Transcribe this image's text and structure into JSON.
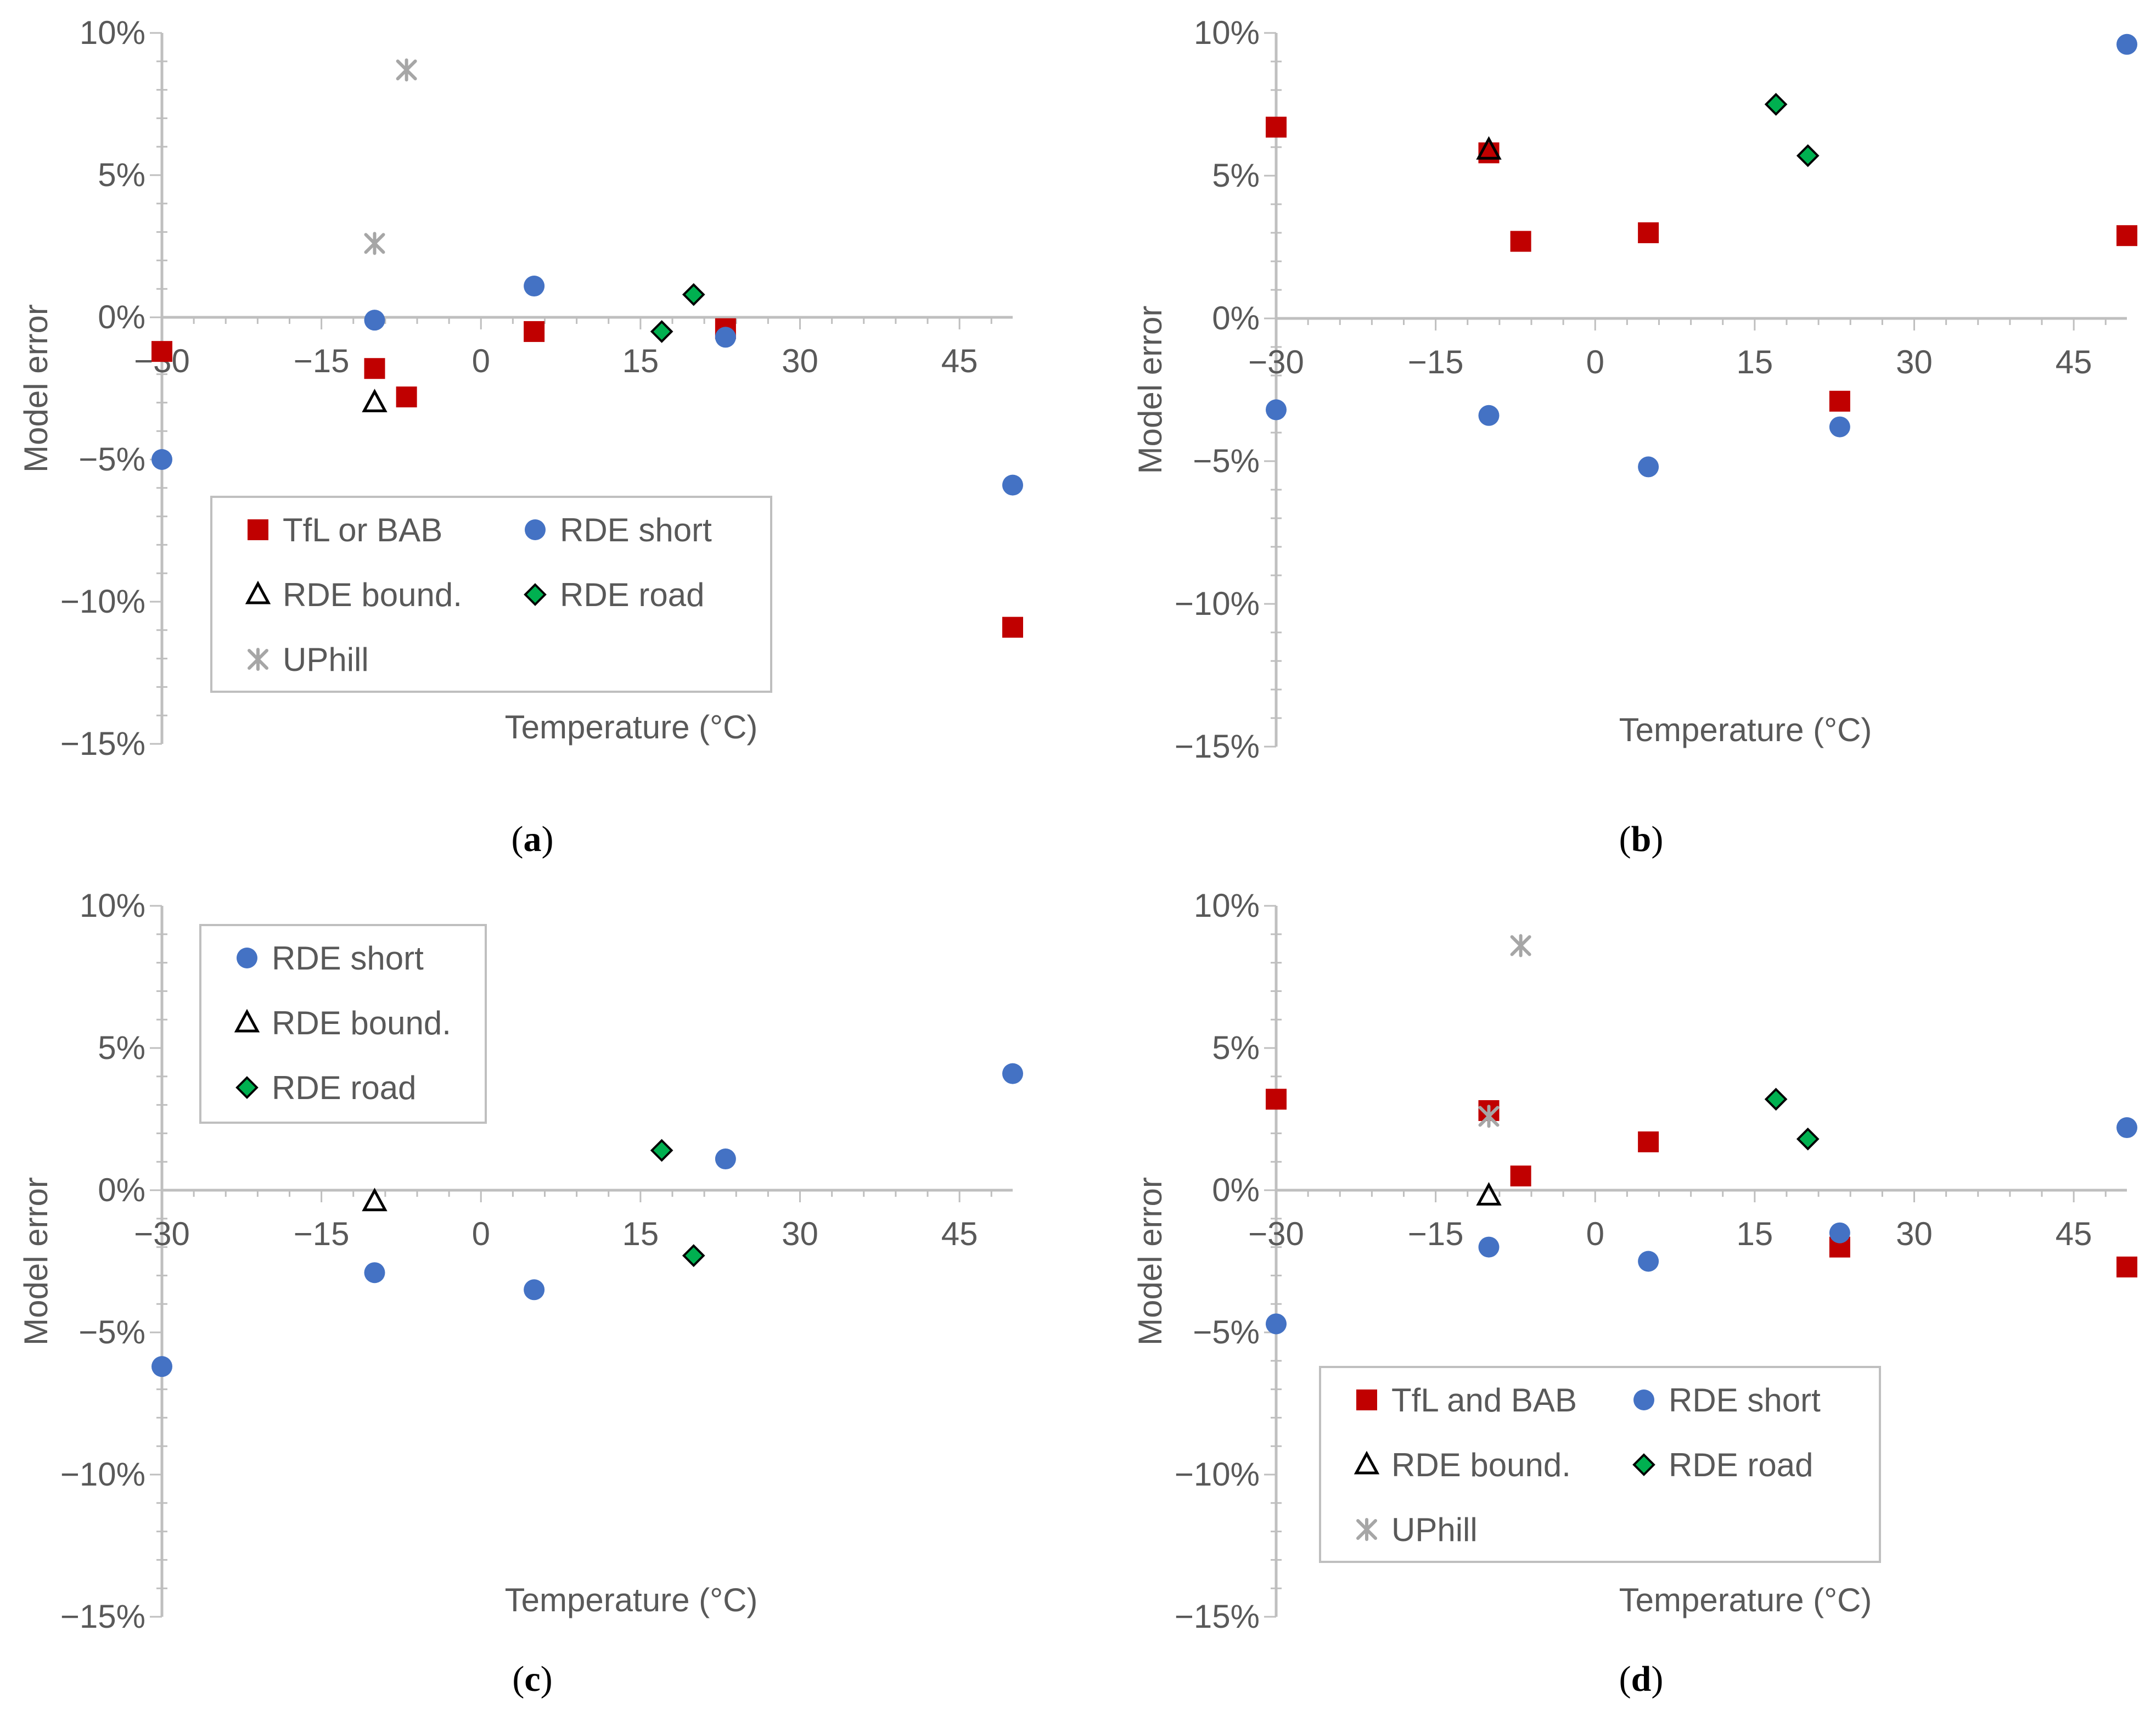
{
  "figure": {
    "colors": {
      "tfl_bab": "#c00000",
      "rde_short": "#4472c4",
      "rde_bound": "#000000",
      "rde_road": "#00b050",
      "uphill": "#a6a6a6",
      "axis": "#bfbfbf",
      "text": "#595959"
    }
  },
  "chart_data": [
    {
      "type": "scatter",
      "caption_letter": "a",
      "xlabel": "Temperature (°C)",
      "ylabel": "Model error",
      "xlim": [
        -30,
        50
      ],
      "ylim": [
        -15,
        10
      ],
      "xticks": [
        "−30",
        "−15",
        "0",
        "15",
        "30",
        "45"
      ],
      "yticks": [
        "10%",
        "5%",
        "0%",
        "−5%",
        "−10%",
        "−15%"
      ],
      "legend_position": "inside-lower-left",
      "series": [
        {
          "name": "TfL or BAB",
          "marker": "square",
          "color": "#c00000",
          "points": [
            [
              -30,
              -1.2
            ],
            [
              -10,
              -1.8
            ],
            [
              -7,
              -2.8
            ],
            [
              5,
              -0.5
            ],
            [
              23,
              -0.4
            ],
            [
              50,
              -10.9
            ]
          ]
        },
        {
          "name": "RDE short",
          "marker": "circle",
          "color": "#4472c4",
          "points": [
            [
              -30,
              -5.0
            ],
            [
              -10,
              -0.1
            ],
            [
              5,
              1.1
            ],
            [
              23,
              -0.7
            ],
            [
              50,
              -5.9
            ]
          ]
        },
        {
          "name": "RDE bound.",
          "marker": "triangle",
          "color": "#000000",
          "points": [
            [
              -10,
              -3.0
            ]
          ]
        },
        {
          "name": "RDE road",
          "marker": "diamond",
          "color": "#00b050",
          "points": [
            [
              17,
              -0.5
            ],
            [
              20,
              0.8
            ]
          ]
        },
        {
          "name": "UPhill",
          "marker": "asterisk",
          "color": "#a6a6a6",
          "points": [
            [
              -10,
              2.6
            ],
            [
              -7,
              8.7
            ]
          ]
        }
      ]
    },
    {
      "type": "scatter",
      "caption_letter": "b",
      "xlabel": "Temperature (°C)",
      "ylabel": "Model error",
      "xlim": [
        -30,
        50
      ],
      "ylim": [
        -15,
        10
      ],
      "xticks": [
        "−30",
        "−15",
        "0",
        "15",
        "30",
        "45"
      ],
      "yticks": [
        "10%",
        "5%",
        "0%",
        "−5%",
        "−10%",
        "−15%"
      ],
      "legend_position": "none",
      "series": [
        {
          "name": "TfL or BAB",
          "marker": "square",
          "color": "#c00000",
          "points": [
            [
              -30,
              6.7
            ],
            [
              -10,
              5.8
            ],
            [
              -7,
              2.7
            ],
            [
              5,
              3.0
            ],
            [
              23,
              -2.9
            ],
            [
              50,
              2.9
            ]
          ]
        },
        {
          "name": "RDE short",
          "marker": "circle",
          "color": "#4472c4",
          "points": [
            [
              -30,
              -3.2
            ],
            [
              -10,
              -3.4
            ],
            [
              5,
              -5.2
            ],
            [
              23,
              -3.8
            ],
            [
              50,
              9.6
            ]
          ]
        },
        {
          "name": "RDE bound.",
          "marker": "triangle",
          "color": "#000000",
          "points": [
            [
              -10,
              5.9
            ]
          ]
        },
        {
          "name": "RDE road",
          "marker": "diamond",
          "color": "#00b050",
          "points": [
            [
              17,
              7.5
            ],
            [
              20,
              5.7
            ]
          ]
        }
      ]
    },
    {
      "type": "scatter",
      "caption_letter": "c",
      "xlabel": "Temperature (°C)",
      "ylabel": "Model error",
      "xlim": [
        -30,
        50
      ],
      "ylim": [
        -15,
        10
      ],
      "xticks": [
        "−30",
        "−15",
        "0",
        "15",
        "30",
        "45"
      ],
      "yticks": [
        "10%",
        "5%",
        "0%",
        "−5%",
        "−10%",
        "−15%"
      ],
      "legend_position": "inside-upper-left",
      "series": [
        {
          "name": "RDE short",
          "marker": "circle",
          "color": "#4472c4",
          "points": [
            [
              -30,
              -6.2
            ],
            [
              -10,
              -2.9
            ],
            [
              5,
              -3.5
            ],
            [
              23,
              1.1
            ],
            [
              50,
              4.1
            ]
          ]
        },
        {
          "name": "RDE bound.",
          "marker": "triangle",
          "color": "#000000",
          "points": [
            [
              -10,
              -0.4
            ]
          ]
        },
        {
          "name": "RDE road",
          "marker": "diamond",
          "color": "#00b050",
          "points": [
            [
              17,
              1.4
            ],
            [
              20,
              -2.3
            ]
          ]
        }
      ]
    },
    {
      "type": "scatter",
      "caption_letter": "d",
      "xlabel": "Temperature (°C)",
      "ylabel": "Model error",
      "xlim": [
        -30,
        50
      ],
      "ylim": [
        -15,
        10
      ],
      "xticks": [
        "−30",
        "−15",
        "0",
        "15",
        "30",
        "45"
      ],
      "yticks": [
        "10%",
        "5%",
        "0%",
        "−5%",
        "−10%",
        "−15%"
      ],
      "legend_position": "inside-lower-left",
      "series": [
        {
          "name": "TfL and BAB",
          "marker": "square",
          "color": "#c00000",
          "points": [
            [
              -30,
              3.2
            ],
            [
              -10,
              2.8
            ],
            [
              -7,
              0.5
            ],
            [
              5,
              1.7
            ],
            [
              23,
              -2.0
            ],
            [
              50,
              -2.7
            ]
          ]
        },
        {
          "name": "RDE short",
          "marker": "circle",
          "color": "#4472c4",
          "points": [
            [
              -30,
              -4.7
            ],
            [
              -10,
              -2.0
            ],
            [
              5,
              -2.5
            ],
            [
              23,
              -1.5
            ],
            [
              50,
              2.2
            ]
          ]
        },
        {
          "name": "RDE bound.",
          "marker": "triangle",
          "color": "#000000",
          "points": [
            [
              -10,
              -0.2
            ]
          ]
        },
        {
          "name": "RDE road",
          "marker": "diamond",
          "color": "#00b050",
          "points": [
            [
              17,
              3.2
            ],
            [
              20,
              1.8
            ]
          ]
        },
        {
          "name": "UPhill",
          "marker": "asterisk",
          "color": "#a6a6a6",
          "points": [
            [
              -10,
              2.6
            ],
            [
              -7,
              8.6
            ]
          ]
        }
      ]
    }
  ]
}
